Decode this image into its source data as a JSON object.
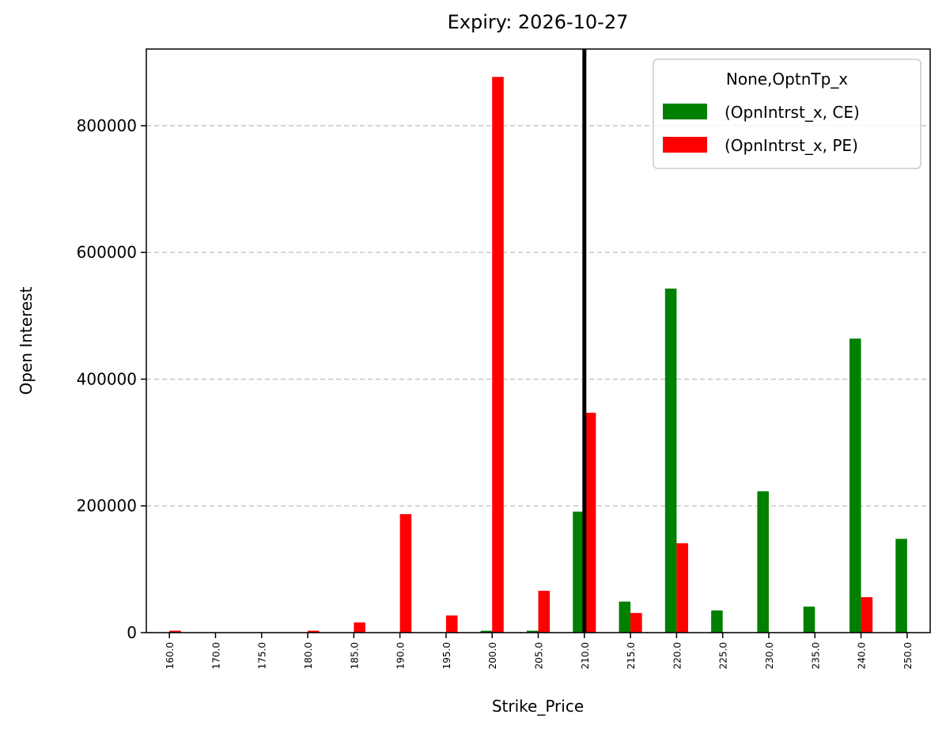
{
  "chart_data": {
    "type": "bar",
    "title": "Expiry: 2026-10-27",
    "x_label": "Strike_Price",
    "y_label": "Open Interest",
    "categories": [
      "160.0",
      "170.0",
      "175.0",
      "180.0",
      "185.0",
      "190.0",
      "195.0",
      "200.0",
      "205.0",
      "210.0",
      "215.0",
      "220.0",
      "225.0",
      "230.0",
      "235.0",
      "240.0",
      "250.0"
    ],
    "series": [
      {
        "name": "(OpnIntrst_x, CE)",
        "color": "#008000",
        "values": [
          0,
          0,
          0,
          0,
          0,
          0,
          0,
          3000,
          3000,
          191000,
          49000,
          543000,
          35000,
          223000,
          41000,
          464000,
          148000
        ]
      },
      {
        "name": "(OpnIntrst_x, PE)",
        "color": "#ff0000",
        "values": [
          3000,
          0,
          0,
          3000,
          16000,
          187000,
          27000,
          877000,
          66000,
          347000,
          31000,
          141000,
          0,
          0,
          0,
          56000,
          0
        ]
      }
    ],
    "legend_title": "None,OptnTp_x",
    "legend_position": "upper right",
    "ylim": [
      0,
      921000
    ],
    "yticks": [
      0,
      200000,
      400000,
      600000,
      800000
    ],
    "grid": true,
    "reference_line": {
      "category": "210.0",
      "color": "#000000"
    }
  }
}
